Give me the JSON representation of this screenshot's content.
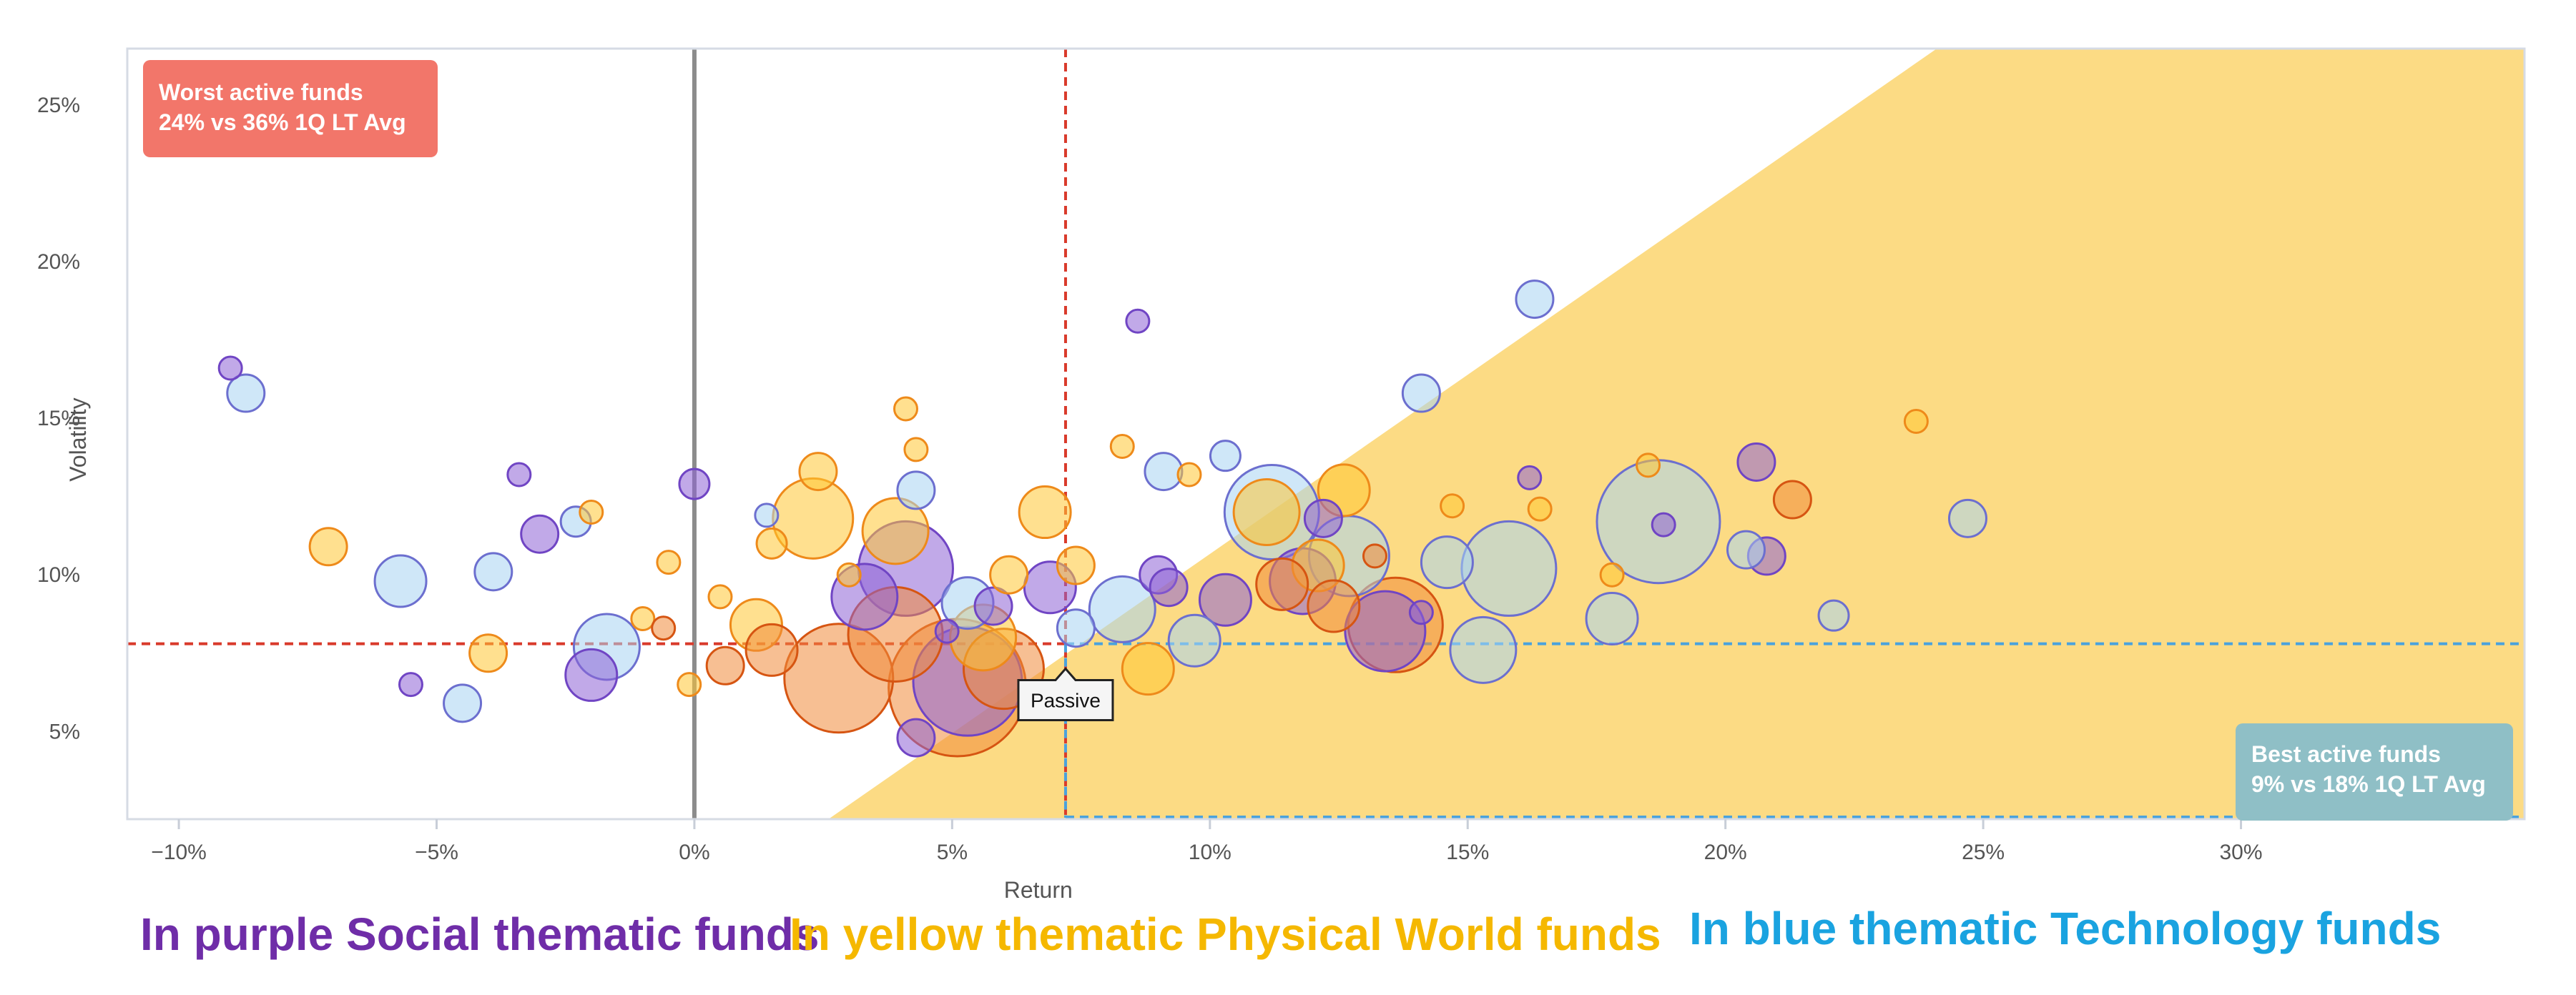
{
  "chart_data": {
    "type": "scatter",
    "variant": "bubble",
    "xlabel": "Return",
    "ylabel": "Volatility",
    "xlim": [
      -11.0,
      35.5
    ],
    "ylim": [
      2.2,
      26.8
    ],
    "x_ticks": [
      -10,
      -5,
      0,
      5,
      10,
      15,
      20,
      25,
      30
    ],
    "x_tick_labels": [
      "−10%",
      "−5%",
      "0%",
      "5%",
      "10%",
      "15%",
      "20%",
      "25%",
      "30%"
    ],
    "y_ticks": [
      5,
      10,
      15,
      20,
      25
    ],
    "y_tick_labels": [
      "5%",
      "10%",
      "15%",
      "20%",
      "25%"
    ],
    "grid": false,
    "legend": "none",
    "colors": {
      "purple_fill": "#8e62d6",
      "purple_stroke": "#7045c4",
      "yellow_fill": "#ffc733",
      "yellow_stroke": "#ee8a1a",
      "blue_fill": "#a7d4f2",
      "blue_stroke": "#6c6fcf",
      "orange_fill": "#f08a3a",
      "orange_stroke": "#d65512",
      "zone_fill": "#fbd56e",
      "red_line": "#d93a2b",
      "blue_line": "#4aa2dd",
      "zero_line": "#8c8c8c",
      "worst_box": "#f2766a",
      "best_box": "#8fbfc6"
    },
    "zero_line_x": 0,
    "red_dashed": {
      "x": 7.2,
      "y": 7.8
    },
    "blue_dashed": {
      "x": 7.2,
      "y": 7.8
    },
    "best_zone_polygon": [
      [
        2.6,
        2.2
      ],
      [
        24.1,
        26.8
      ],
      [
        35.5,
        26.8
      ],
      [
        35.5,
        2.2
      ]
    ],
    "passive_label": {
      "text": "Passive",
      "x": 7.2,
      "y": 6.0
    },
    "annotations": [
      {
        "id": "worst",
        "line1": "Worst active funds",
        "line2": "24% vs 36% 1Q LT Avg"
      },
      {
        "id": "best",
        "line1": "Best active funds",
        "line2": "9% vs 18% 1Q LT Avg"
      }
    ],
    "series": [
      {
        "theme": "purple",
        "points": [
          {
            "x": -9.0,
            "y": 16.6,
            "s": 0.0
          },
          {
            "x": -5.5,
            "y": 6.5,
            "s": 0.0
          },
          {
            "x": -3.4,
            "y": 13.2,
            "s": 0.0
          },
          {
            "x": -3.0,
            "y": 11.3,
            "s": 0.1
          },
          {
            "x": -2.0,
            "y": 6.8,
            "s": 0.2
          },
          {
            "x": 0.0,
            "y": 12.9,
            "s": 0.05
          },
          {
            "x": 3.3,
            "y": 9.3,
            "s": 0.3
          },
          {
            "x": 4.1,
            "y": 10.2,
            "s": 0.5
          },
          {
            "x": 4.3,
            "y": 4.8,
            "s": 0.1
          },
          {
            "x": 4.9,
            "y": 8.2,
            "s": 0.0
          },
          {
            "x": 5.3,
            "y": 6.6,
            "s": 0.6
          },
          {
            "x": 5.8,
            "y": 9.0,
            "s": 0.1
          },
          {
            "x": 6.9,
            "y": 9.6,
            "s": 0.2
          },
          {
            "x": 8.6,
            "y": 18.1,
            "s": 0.0
          },
          {
            "x": 9.0,
            "y": 10.0,
            "s": 0.1
          },
          {
            "x": 9.2,
            "y": 9.6,
            "s": 0.1
          },
          {
            "x": 10.3,
            "y": 9.2,
            "s": 0.2
          },
          {
            "x": 11.8,
            "y": 9.8,
            "s": 0.3
          },
          {
            "x": 12.2,
            "y": 11.8,
            "s": 0.1
          },
          {
            "x": 13.4,
            "y": 8.2,
            "s": 0.4
          },
          {
            "x": 14.1,
            "y": 8.8,
            "s": 0.0
          },
          {
            "x": 16.2,
            "y": 13.1,
            "s": 0.0
          },
          {
            "x": 18.8,
            "y": 11.6,
            "s": 0.0
          },
          {
            "x": 20.6,
            "y": 13.6,
            "s": 0.1
          },
          {
            "x": 20.8,
            "y": 10.6,
            "s": 0.1
          }
        ]
      },
      {
        "theme": "yellow",
        "points": [
          {
            "x": -7.1,
            "y": 10.9,
            "s": 0.1
          },
          {
            "x": -4.0,
            "y": 7.5,
            "s": 0.1
          },
          {
            "x": -2.0,
            "y": 12.0,
            "s": 0.0
          },
          {
            "x": -1.0,
            "y": 8.6,
            "s": 0.0
          },
          {
            "x": -0.5,
            "y": 10.4,
            "s": 0.0
          },
          {
            "x": -0.1,
            "y": 6.5,
            "s": 0.0
          },
          {
            "x": 0.5,
            "y": 9.3,
            "s": 0.0
          },
          {
            "x": 1.2,
            "y": 8.4,
            "s": 0.2
          },
          {
            "x": 1.5,
            "y": 11.0,
            "s": 0.05
          },
          {
            "x": 2.3,
            "y": 11.8,
            "s": 0.4
          },
          {
            "x": 2.4,
            "y": 13.3,
            "s": 0.1
          },
          {
            "x": 3.0,
            "y": 10.0,
            "s": 0.0
          },
          {
            "x": 3.9,
            "y": 11.4,
            "s": 0.3
          },
          {
            "x": 4.1,
            "y": 15.3,
            "s": 0.0
          },
          {
            "x": 4.3,
            "y": 14.0,
            "s": 0.0
          },
          {
            "x": 5.6,
            "y": 8.0,
            "s": 0.3
          },
          {
            "x": 6.1,
            "y": 10.0,
            "s": 0.1
          },
          {
            "x": 6.8,
            "y": 12.0,
            "s": 0.2
          },
          {
            "x": 7.4,
            "y": 10.3,
            "s": 0.1
          },
          {
            "x": 8.3,
            "y": 14.1,
            "s": 0.0
          },
          {
            "x": 8.8,
            "y": 7.0,
            "s": 0.2
          },
          {
            "x": 9.6,
            "y": 13.2,
            "s": 0.0
          },
          {
            "x": 11.1,
            "y": 12.0,
            "s": 0.3
          },
          {
            "x": 12.1,
            "y": 10.3,
            "s": 0.2
          },
          {
            "x": 12.6,
            "y": 12.7,
            "s": 0.2
          },
          {
            "x": 14.7,
            "y": 12.2,
            "s": 0.0
          },
          {
            "x": 16.4,
            "y": 12.1,
            "s": 0.0
          },
          {
            "x": 17.8,
            "y": 10.0,
            "s": 0.0
          },
          {
            "x": 18.5,
            "y": 13.5,
            "s": 0.0
          },
          {
            "x": 23.7,
            "y": 14.9,
            "s": 0.0
          }
        ]
      },
      {
        "theme": "blue",
        "points": [
          {
            "x": -8.7,
            "y": 15.8,
            "s": 0.1
          },
          {
            "x": -5.7,
            "y": 9.8,
            "s": 0.2
          },
          {
            "x": -4.5,
            "y": 5.9,
            "s": 0.1
          },
          {
            "x": -3.9,
            "y": 10.1,
            "s": 0.1
          },
          {
            "x": -1.7,
            "y": 7.7,
            "s": 0.3
          },
          {
            "x": -2.3,
            "y": 11.7,
            "s": 0.05
          },
          {
            "x": 1.4,
            "y": 11.9,
            "s": 0.0
          },
          {
            "x": 4.3,
            "y": 12.7,
            "s": 0.1
          },
          {
            "x": 5.3,
            "y": 9.1,
            "s": 0.2
          },
          {
            "x": 7.4,
            "y": 8.3,
            "s": 0.1
          },
          {
            "x": 8.3,
            "y": 8.9,
            "s": 0.3
          },
          {
            "x": 9.1,
            "y": 13.3,
            "s": 0.1
          },
          {
            "x": 9.7,
            "y": 7.9,
            "s": 0.2
          },
          {
            "x": 10.3,
            "y": 13.8,
            "s": 0.05
          },
          {
            "x": 11.2,
            "y": 12.0,
            "s": 0.5
          },
          {
            "x": 12.7,
            "y": 10.6,
            "s": 0.4
          },
          {
            "x": 14.1,
            "y": 15.8,
            "s": 0.1
          },
          {
            "x": 14.6,
            "y": 10.4,
            "s": 0.2
          },
          {
            "x": 15.3,
            "y": 7.6,
            "s": 0.3
          },
          {
            "x": 15.8,
            "y": 10.2,
            "s": 0.5
          },
          {
            "x": 16.3,
            "y": 18.8,
            "s": 0.1
          },
          {
            "x": 17.8,
            "y": 8.6,
            "s": 0.2
          },
          {
            "x": 18.7,
            "y": 11.7,
            "s": 0.7
          },
          {
            "x": 20.4,
            "y": 10.8,
            "s": 0.1
          },
          {
            "x": 22.1,
            "y": 8.7,
            "s": 0.05
          },
          {
            "x": 24.7,
            "y": 11.8,
            "s": 0.1
          }
        ]
      },
      {
        "theme": "orange",
        "points": [
          {
            "x": -0.6,
            "y": 8.3,
            "s": 0.0
          },
          {
            "x": 0.6,
            "y": 7.1,
            "s": 0.1
          },
          {
            "x": 1.5,
            "y": 7.6,
            "s": 0.2
          },
          {
            "x": 2.8,
            "y": 6.7,
            "s": 0.6
          },
          {
            "x": 3.9,
            "y": 8.1,
            "s": 0.5
          },
          {
            "x": 5.1,
            "y": 6.4,
            "s": 0.8
          },
          {
            "x": 6.0,
            "y": 7.0,
            "s": 0.4
          },
          {
            "x": 11.4,
            "y": 9.7,
            "s": 0.2
          },
          {
            "x": 12.4,
            "y": 9.0,
            "s": 0.2
          },
          {
            "x": 13.6,
            "y": 8.4,
            "s": 0.5
          },
          {
            "x": 13.2,
            "y": 10.6,
            "s": 0.0
          },
          {
            "x": 21.3,
            "y": 12.4,
            "s": 0.1
          }
        ]
      }
    ]
  },
  "captions": {
    "purple": "In purple Social thematic funds",
    "yellow": "In yellow thematic Physical World funds",
    "blue": "In blue thematic Technology funds",
    "purple_color": "#6f2da8",
    "yellow_color": "#f5b800",
    "blue_color": "#1aa3e0"
  }
}
